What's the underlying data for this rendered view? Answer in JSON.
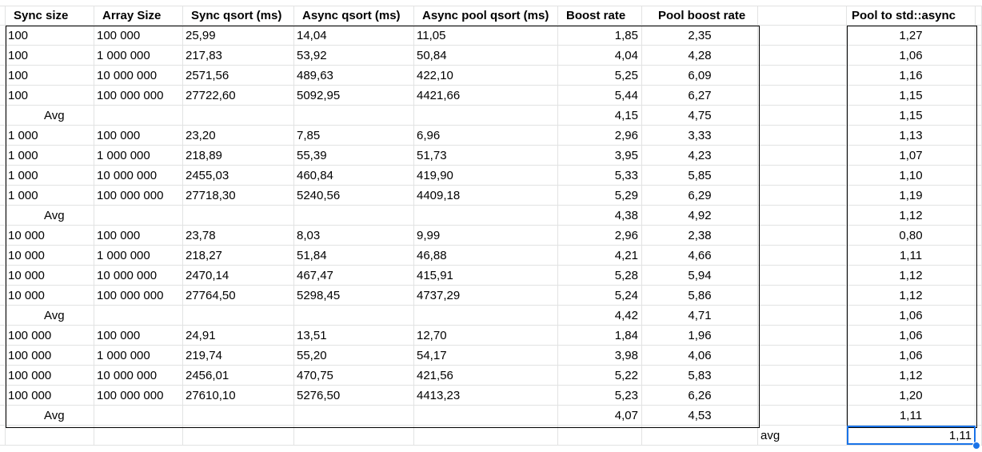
{
  "sheet": {
    "headers": [
      "Sync size",
      "Array Size",
      "Sync qsort (ms)",
      "Async qsort (ms)",
      "Async pool qsort (ms)",
      "Boost rate",
      "Pool boost rate",
      "",
      "Pool to std::async"
    ],
    "rows": [
      [
        "100",
        "100 000",
        "25,99",
        "14,04",
        "11,05",
        "1,85",
        "2,35",
        "",
        "1,27"
      ],
      [
        "100",
        "1 000 000",
        "217,83",
        "53,92",
        "50,84",
        "4,04",
        "4,28",
        "",
        "1,06"
      ],
      [
        "100",
        "10 000 000",
        "2571,56",
        "489,63",
        "422,10",
        "5,25",
        "6,09",
        "",
        "1,16"
      ],
      [
        "100",
        "100 000 000",
        "27722,60",
        "5092,95",
        "4421,66",
        "5,44",
        "6,27",
        "",
        "1,15"
      ],
      [
        "Avg",
        "",
        "",
        "",
        "",
        "4,15",
        "4,75",
        "",
        "1,15"
      ],
      [
        "1 000",
        "100 000",
        "23,20",
        "7,85",
        "6,96",
        "2,96",
        "3,33",
        "",
        "1,13"
      ],
      [
        "1 000",
        "1 000 000",
        "218,89",
        "55,39",
        "51,73",
        "3,95",
        "4,23",
        "",
        "1,07"
      ],
      [
        "1 000",
        "10 000 000",
        "2455,03",
        "460,84",
        "419,90",
        "5,33",
        "5,85",
        "",
        "1,10"
      ],
      [
        "1 000",
        "100 000 000",
        "27718,30",
        "5240,56",
        "4409,18",
        "5,29",
        "6,29",
        "",
        "1,19"
      ],
      [
        "Avg",
        "",
        "",
        "",
        "",
        "4,38",
        "4,92",
        "",
        "1,12"
      ],
      [
        "10 000",
        "100 000",
        "23,78",
        "8,03",
        "9,99",
        "2,96",
        "2,38",
        "",
        "0,80"
      ],
      [
        "10 000",
        "1 000 000",
        "218,27",
        "51,84",
        "46,88",
        "4,21",
        "4,66",
        "",
        "1,11"
      ],
      [
        "10 000",
        "10 000 000",
        "2470,14",
        "467,47",
        "415,91",
        "5,28",
        "5,94",
        "",
        "1,12"
      ],
      [
        "10 000",
        "100 000 000",
        "27764,50",
        "5298,45",
        "4737,29",
        "5,24",
        "5,86",
        "",
        "1,12"
      ],
      [
        "Avg",
        "",
        "",
        "",
        "",
        "4,42",
        "4,71",
        "",
        "1,06"
      ],
      [
        "100 000",
        "100 000",
        "24,91",
        "13,51",
        "12,70",
        "1,84",
        "1,96",
        "",
        "1,06"
      ],
      [
        "100 000",
        "1 000 000",
        "219,74",
        "55,20",
        "54,17",
        "3,98",
        "4,06",
        "",
        "1,06"
      ],
      [
        "100 000",
        "10 000 000",
        "2456,01",
        "470,75",
        "421,56",
        "5,22",
        "5,83",
        "",
        "1,12"
      ],
      [
        "100 000",
        "100 000 000",
        "27610,10",
        "5276,50",
        "4413,23",
        "5,23",
        "6,26",
        "",
        "1,20"
      ],
      [
        "Avg",
        "",
        "",
        "",
        "",
        "4,07",
        "4,53",
        "",
        "1,11"
      ]
    ],
    "footer": [
      "",
      "",
      "",
      "",
      "",
      "",
      "",
      "avg",
      "1,11"
    ]
  },
  "colors": {
    "gridline": "#e2e3e3",
    "table_border": "#000000",
    "selection": "#1a73e8"
  }
}
